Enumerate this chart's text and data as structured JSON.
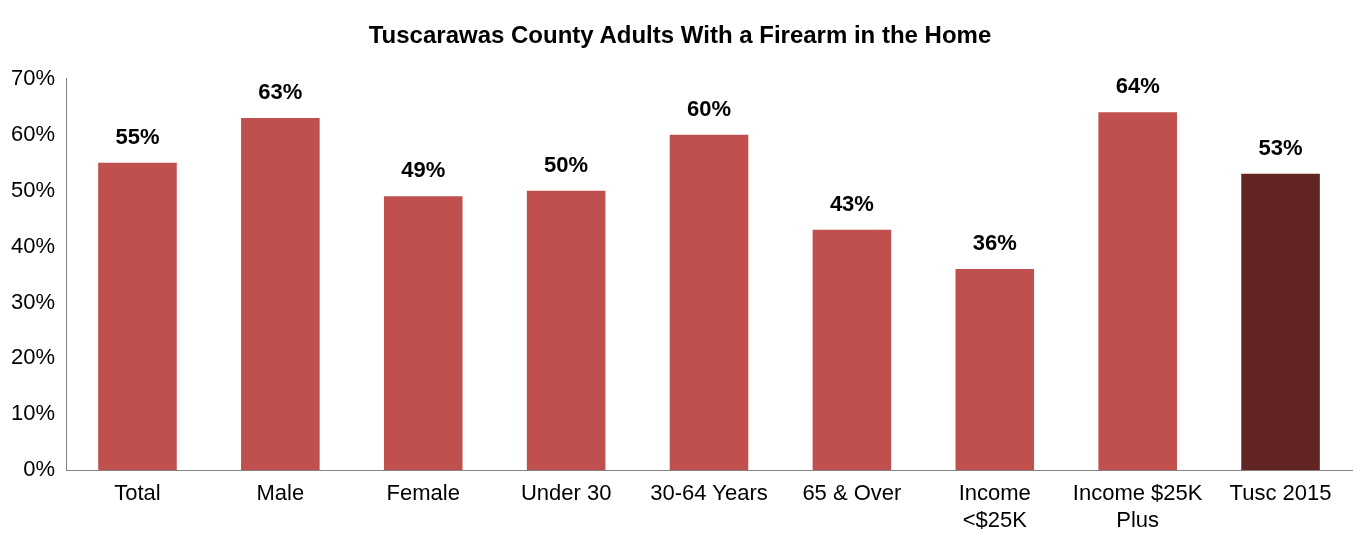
{
  "chart_data": {
    "type": "bar",
    "title": "Tuscarawas County Adults With a Firearm in the Home",
    "categories": [
      "Total",
      "Male",
      "Female",
      "Under 30",
      "30-64 Years",
      "65 & Over",
      "Income <$25K",
      "Income $25K Plus",
      "Tusc 2015"
    ],
    "values": [
      55,
      63,
      49,
      50,
      60,
      43,
      36,
      64,
      53
    ],
    "colors": [
      "#c0504d",
      "#c0504d",
      "#c0504d",
      "#c0504d",
      "#c0504d",
      "#c0504d",
      "#c0504d",
      "#c0504d",
      "#632523"
    ],
    "value_labels": [
      "55%",
      "63%",
      "49%",
      "50%",
      "60%",
      "43%",
      "36%",
      "64%",
      "53%"
    ],
    "ylim": [
      0,
      70
    ],
    "yticks": [
      {
        "value": 0,
        "label": "0%"
      },
      {
        "value": 10,
        "label": "10%"
      },
      {
        "value": 20,
        "label": "20%"
      },
      {
        "value": 30,
        "label": "30%"
      },
      {
        "value": 40,
        "label": "40%"
      },
      {
        "value": 50,
        "label": "50%"
      },
      {
        "value": 60,
        "label": "60%"
      },
      {
        "value": 70,
        "label": "70%"
      }
    ],
    "grid": false,
    "legend": false
  }
}
